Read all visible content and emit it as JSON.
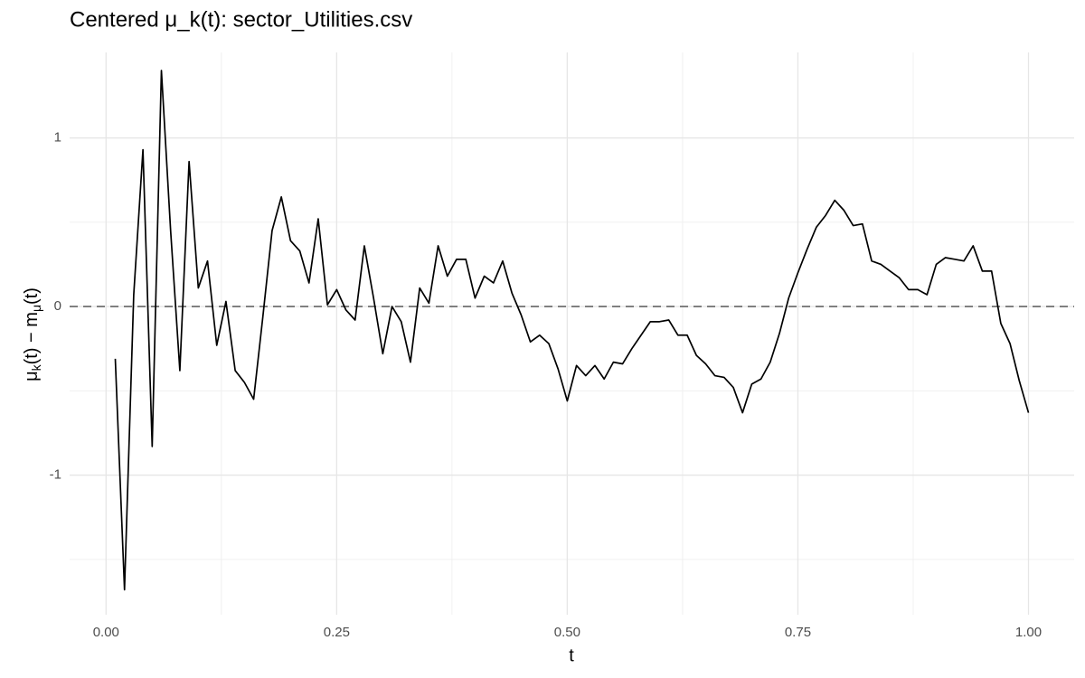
{
  "chart_data": {
    "type": "line",
    "title": "Centered μ_k(t): sector_Utilities.csv",
    "xlabel": "t",
    "ylabel": [
      "μ",
      "k",
      "(t) − m",
      "μ",
      "(t)"
    ],
    "x": [
      0.01,
      0.02,
      0.03,
      0.04,
      0.05,
      0.06,
      0.07,
      0.08,
      0.09,
      0.1,
      0.11,
      0.12,
      0.13,
      0.14,
      0.15,
      0.16,
      0.17,
      0.18,
      0.19,
      0.2,
      0.21,
      0.22,
      0.23,
      0.24,
      0.25,
      0.26,
      0.27,
      0.28,
      0.29,
      0.3,
      0.31,
      0.32,
      0.33,
      0.34,
      0.35,
      0.36,
      0.37,
      0.38,
      0.39,
      0.4,
      0.41,
      0.42,
      0.43,
      0.44,
      0.45,
      0.46,
      0.47,
      0.48,
      0.49,
      0.5,
      0.51,
      0.52,
      0.53,
      0.54,
      0.55,
      0.56,
      0.57,
      0.58,
      0.59,
      0.6,
      0.61,
      0.62,
      0.63,
      0.64,
      0.65,
      0.66,
      0.67,
      0.68,
      0.69,
      0.7,
      0.71,
      0.72,
      0.73,
      0.74,
      0.75,
      0.76,
      0.77,
      0.78,
      0.79,
      0.8,
      0.81,
      0.82,
      0.83,
      0.84,
      0.85,
      0.86,
      0.87,
      0.88,
      0.89,
      0.9,
      0.91,
      0.92,
      0.93,
      0.94,
      0.95,
      0.96,
      0.97,
      0.98,
      0.99,
      1.0
    ],
    "series": [
      {
        "color": "#000000",
        "values": [
          -0.31,
          -1.68,
          0.07,
          0.93,
          -0.83,
          1.4,
          0.45,
          -0.38,
          0.86,
          0.11,
          0.27,
          -0.23,
          0.03,
          -0.38,
          -0.45,
          -0.55,
          -0.06,
          0.45,
          0.65,
          0.39,
          0.33,
          0.14,
          0.52,
          0.01,
          0.1,
          -0.02,
          -0.08,
          0.36,
          0.05,
          -0.28,
          0.0,
          -0.09,
          -0.33,
          0.11,
          0.02,
          0.36,
          0.18,
          0.28,
          0.28,
          0.05,
          0.18,
          0.14,
          0.27,
          0.08,
          -0.05,
          -0.21,
          -0.17,
          -0.22,
          -0.37,
          -0.56,
          -0.35,
          -0.41,
          -0.35,
          -0.43,
          -0.33,
          -0.34,
          -0.25,
          -0.17,
          -0.09,
          -0.09,
          -0.08,
          -0.17,
          -0.17,
          -0.29,
          -0.34,
          -0.41,
          -0.42,
          -0.48,
          -0.63,
          -0.46,
          -0.43,
          -0.33,
          -0.16,
          0.05,
          0.2,
          0.34,
          0.47,
          0.54,
          0.63,
          0.57,
          0.48,
          0.49,
          0.27,
          0.25,
          0.21,
          0.17,
          0.1,
          0.1,
          0.07,
          0.25,
          0.29,
          0.28,
          0.27,
          0.36,
          0.21,
          0.21,
          -0.1,
          -0.22,
          -0.44,
          -0.63
        ]
      }
    ],
    "xlim": [
      -0.0395,
      1.0495
    ],
    "ylim": [
      -1.828,
      1.507
    ],
    "xticks": [
      {
        "value": 0,
        "label": "0.00"
      },
      {
        "value": 0.25,
        "label": "0.25"
      },
      {
        "value": 0.5,
        "label": "0.50"
      },
      {
        "value": 0.75,
        "label": "0.75"
      },
      {
        "value": 1,
        "label": "1.00"
      }
    ],
    "yticks": [
      -1,
      0,
      1
    ],
    "xminor": [
      0.125,
      0.375,
      0.625,
      0.875
    ],
    "yminor": [
      -1.5,
      -0.5,
      0.5
    ],
    "grid": true,
    "hline": 0
  }
}
